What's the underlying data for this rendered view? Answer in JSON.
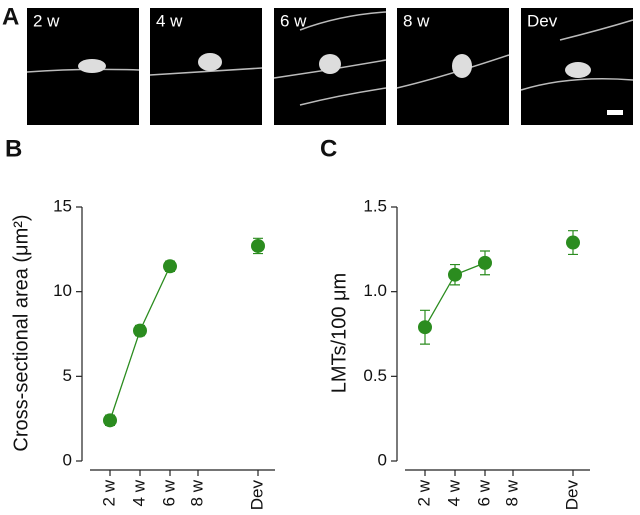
{
  "panel_a": {
    "label": "A",
    "images": [
      "2 w",
      "4 w",
      "6 w",
      "8 w",
      "Dev"
    ]
  },
  "chart_data": [
    {
      "type": "scatter-line",
      "panel_label": "B",
      "ylabel": "Cross-sectional area (μm²)",
      "categories": [
        "2 w",
        "4 w",
        "6 w",
        "8 w",
        "Dev"
      ],
      "series": [
        {
          "color": "#2b8c1f",
          "values": [
            2.4,
            7.7,
            11.5,
            null,
            12.7
          ],
          "errors": [
            0.3,
            0.3,
            0.3,
            null,
            0.45
          ]
        }
      ],
      "ylim": [
        0,
        15
      ],
      "yticks": [
        0,
        5,
        10,
        15
      ]
    },
    {
      "type": "scatter-line",
      "panel_label": "C",
      "ylabel": "LMTs/100 μm",
      "categories": [
        "2 w",
        "4 w",
        "6 w",
        "8 w",
        "Dev"
      ],
      "series": [
        {
          "color": "#2b8c1f",
          "values": [
            0.79,
            1.1,
            1.17,
            null,
            1.29
          ],
          "errors": [
            0.1,
            0.06,
            0.07,
            null,
            0.07
          ]
        }
      ],
      "ylim": [
        0,
        1.5
      ],
      "yticks": [
        0,
        {
          "value": 0.5,
          "label": "0.5"
        },
        {
          "value": 1,
          "label": "1.0"
        },
        1.5
      ]
    }
  ]
}
